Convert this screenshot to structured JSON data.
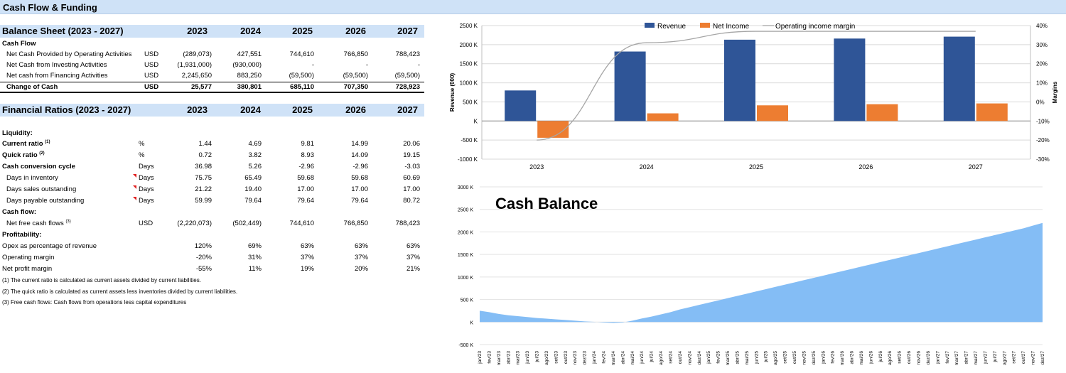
{
  "header": {
    "title": "Cash Flow & Funding"
  },
  "balance_sheet": {
    "title": "Balance Sheet (2023 - 2027)",
    "years": [
      "2023",
      "2024",
      "2025",
      "2026",
      "2027"
    ],
    "section_label": "Cash Flow",
    "rows": [
      {
        "label": "Net Cash Provided by Operating Activities",
        "unit": "USD",
        "values": [
          "(289,073)",
          "427,551",
          "744,610",
          "766,850",
          "788,423"
        ]
      },
      {
        "label": "Net Cash from Investing Activities",
        "unit": "USD",
        "values": [
          "(1,931,000)",
          "(930,000)",
          "-",
          "-",
          "-"
        ]
      },
      {
        "label": "Net cash from Financing Activities",
        "unit": "USD",
        "values": [
          "2,245,650",
          "883,250",
          "(59,500)",
          "(59,500)",
          "(59,500)"
        ]
      }
    ],
    "total": {
      "label": "Change of Cash",
      "unit": "USD",
      "values": [
        "25,577",
        "380,801",
        "685,110",
        "707,350",
        "728,923"
      ]
    }
  },
  "ratios": {
    "title": "Financial Ratios (2023 - 2027)",
    "years": [
      "2023",
      "2024",
      "2025",
      "2026",
      "2027"
    ],
    "liquidity_label": "Liquidity:",
    "current_ratio": {
      "label": "Current ratio",
      "sup": "(1)",
      "unit": "%",
      "values": [
        "1.44",
        "4.69",
        "9.81",
        "14.99",
        "20.06"
      ]
    },
    "quick_ratio": {
      "label": "Quick ratio",
      "sup": "(2)",
      "unit": "%",
      "values": [
        "0.72",
        "3.82",
        "8.93",
        "14.09",
        "19.15"
      ]
    },
    "ccc": {
      "label": "Cash conversion cycle",
      "unit": "Days",
      "values": [
        "36.98",
        "5.26",
        "-2.96",
        "-2.96",
        "-3.03"
      ]
    },
    "dio": {
      "label": "Days in inventory",
      "unit": "Days",
      "values": [
        "75.75",
        "65.49",
        "59.68",
        "59.68",
        "60.69"
      ]
    },
    "dso": {
      "label": "Days sales outstanding",
      "unit": "Days",
      "values": [
        "21.22",
        "19.40",
        "17.00",
        "17.00",
        "17.00"
      ]
    },
    "dpo": {
      "label": "Days payable outstanding",
      "unit": "Days",
      "values": [
        "59.99",
        "79.64",
        "79.64",
        "79.64",
        "80.72"
      ]
    },
    "cashflow_label": "Cash flow:",
    "nfcf": {
      "label": "Net free cash flows",
      "sup": "(3)",
      "unit": "USD",
      "values": [
        "(2,220,073)",
        "(502,449)",
        "744,610",
        "766,850",
        "788,423"
      ]
    },
    "profitability_label": "Profitability:",
    "opex": {
      "label": "Opex as percentage of revenue",
      "values": [
        "120%",
        "69%",
        "63%",
        "63%",
        "63%"
      ]
    },
    "opmargin": {
      "label": "Operating margin",
      "values": [
        "-20%",
        "31%",
        "37%",
        "37%",
        "37%"
      ]
    },
    "netmargin": {
      "label": "Net profit margin",
      "values": [
        "-55%",
        "11%",
        "19%",
        "20%",
        "21%"
      ]
    },
    "notes": [
      "(1) The current ratio is calculated as current assets divided by current liabilities.",
      "(2) The quick ratio is calculated as current assets less inventories divided by current liabilities.",
      "(3) Free cash flows: Cash flows from operations less capital expenditures"
    ]
  },
  "chart_data": [
    {
      "type": "bar",
      "categories": [
        "2023",
        "2024",
        "2025",
        "2026",
        "2027"
      ],
      "series": [
        {
          "name": "Revenue",
          "axis": "left",
          "color": "#2f5597",
          "values": [
            800,
            1820,
            2130,
            2160,
            2210
          ]
        },
        {
          "name": "Net Income",
          "axis": "left",
          "color": "#ed7d31",
          "values": [
            -440,
            200,
            410,
            440,
            460
          ]
        },
        {
          "name": "Operating income margin",
          "axis": "right",
          "type": "line",
          "color": "#a6a6a6",
          "values": [
            -20,
            31,
            37,
            37,
            37
          ]
        }
      ],
      "ylabel": "Revenue (000)",
      "y2label": "Margins",
      "ylim": [
        -1000,
        2500
      ],
      "y_ticks": [
        "-1000 K",
        "-500 K",
        "K",
        "500 K",
        "1000 K",
        "1500 K",
        "2000 K",
        "2500 K"
      ],
      "y2lim": [
        -30,
        40
      ],
      "y2_ticks": [
        "-30%",
        "-20%",
        "-10%",
        "0%",
        "10%",
        "20%",
        "30%",
        "40%"
      ],
      "legend": "top"
    },
    {
      "type": "area",
      "title": "Cash Balance",
      "color": "#84bdf5",
      "ylim": [
        -500,
        3000
      ],
      "y_ticks": [
        "-500 K",
        "K",
        "500 K",
        "1000 K",
        "1500 K",
        "2000 K",
        "2500 K",
        "3000 K"
      ],
      "categories": [
        "jan/23",
        "fev/23",
        "mar/23",
        "abr/23",
        "mai/23",
        "jun/23",
        "jul/23",
        "ago/23",
        "set/23",
        "out/23",
        "nov/23",
        "dez/23",
        "jan/24",
        "fev/24",
        "mar/24",
        "abr/24",
        "mai/24",
        "jun/24",
        "jul/24",
        "ago/24",
        "set/24",
        "out/24",
        "nov/24",
        "dez/24",
        "jan/25",
        "fev/25",
        "mar/25",
        "abr/25",
        "mai/25",
        "jun/25",
        "jul/25",
        "ago/25",
        "set/25",
        "out/25",
        "nov/25",
        "dez/25",
        "jan/26",
        "fev/26",
        "mar/26",
        "abr/26",
        "mai/26",
        "jun/26",
        "jul/26",
        "ago/26",
        "set/26",
        "out/26",
        "nov/26",
        "dez/26",
        "jan/27",
        "fev/27",
        "mar/27",
        "abr/27",
        "mai/27",
        "jun/27",
        "jul/27",
        "ago/27",
        "set/27",
        "out/27",
        "nov/27",
        "dez/27"
      ],
      "values": [
        250,
        220,
        180,
        150,
        130,
        110,
        90,
        75,
        60,
        45,
        30,
        15,
        5,
        -10,
        -20,
        -10,
        30,
        80,
        120,
        170,
        220,
        280,
        330,
        380,
        430,
        480,
        530,
        580,
        630,
        680,
        730,
        780,
        830,
        880,
        930,
        980,
        1030,
        1080,
        1130,
        1180,
        1230,
        1280,
        1330,
        1380,
        1430,
        1480,
        1530,
        1580,
        1630,
        1680,
        1730,
        1780,
        1830,
        1880,
        1930,
        1980,
        2030,
        2080,
        2140,
        2200
      ]
    }
  ]
}
